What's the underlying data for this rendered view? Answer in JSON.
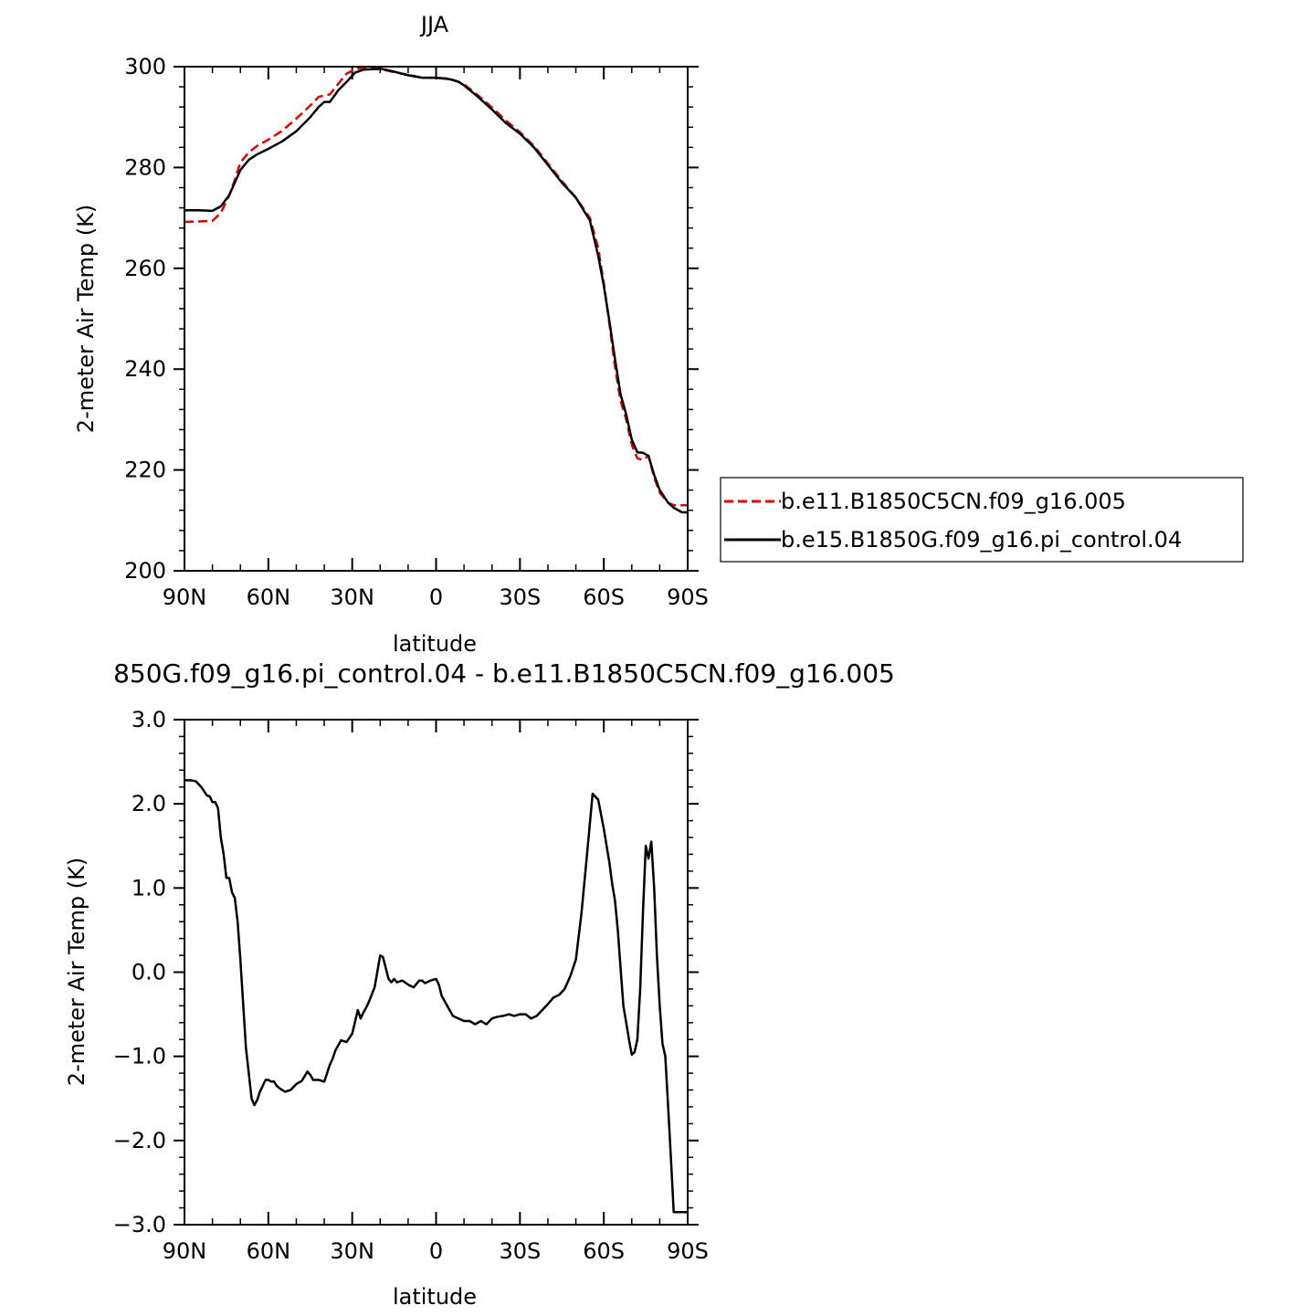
{
  "chart_data": [
    {
      "type": "line",
      "title": "JJA",
      "xlabel": "latitude",
      "ylabel": "2-meter Air Temp (K)",
      "x_axis": "latitude, from 90N (left) to 90S (right)",
      "xlim": [
        90,
        -90
      ],
      "ylim": [
        200,
        300
      ],
      "xticks": [
        90,
        60,
        30,
        0,
        -30,
        -60,
        -90
      ],
      "xtick_labels": [
        "90N",
        "60N",
        "30N",
        "0",
        "30S",
        "60S",
        "90S"
      ],
      "yticks": [
        200,
        220,
        240,
        260,
        280,
        300
      ],
      "ytick_labels": [
        "200",
        "220",
        "240",
        "260",
        "280",
        "300"
      ],
      "legend": {
        "position": "right"
      },
      "series": [
        {
          "name": "b.e11.B1850C5CN.f09_g16.005",
          "color": "#e00000",
          "dash": "dashed",
          "x": [
            90,
            85,
            80,
            77,
            74,
            72,
            70,
            67,
            64,
            60,
            55,
            50,
            45,
            42,
            40,
            38,
            35,
            32,
            29,
            26,
            23,
            20,
            18,
            15,
            10,
            5,
            0,
            -5,
            -8,
            -10,
            -15,
            -20,
            -25,
            -30,
            -35,
            -40,
            -45,
            -50,
            -55,
            -58,
            -60,
            -62,
            -64,
            -66,
            -68,
            -70,
            -72,
            -74,
            -76,
            -78,
            -80,
            -83,
            -85,
            -88,
            -90
          ],
          "y": [
            269.2,
            269.3,
            269.4,
            271.0,
            274.5,
            277.5,
            281.0,
            283.0,
            284.3,
            285.5,
            287.3,
            289.7,
            292.3,
            294.0,
            294.3,
            294.5,
            296.6,
            298.6,
            299.5,
            299.8,
            299.7,
            299.5,
            299.3,
            298.9,
            298.4,
            297.8,
            297.8,
            297.6,
            297.0,
            296.5,
            294.3,
            291.9,
            289.3,
            287.0,
            284.3,
            280.8,
            277.3,
            274.0,
            270.0,
            264.0,
            257.0,
            249.0,
            240.5,
            233.7,
            230.0,
            225.0,
            222.3,
            222.0,
            222.8,
            218.5,
            215.5,
            213.5,
            213.0,
            213.0,
            213.0
          ]
        },
        {
          "name": "b.e15.B1850G.f09_g16.pi_control.04",
          "color": "#000000",
          "dash": "solid",
          "x": [
            90,
            85,
            80,
            77,
            74,
            72,
            70,
            67,
            64,
            60,
            55,
            50,
            45,
            42,
            40,
            38,
            35,
            32,
            29,
            26,
            23,
            20,
            18,
            15,
            10,
            5,
            0,
            -5,
            -8,
            -10,
            -15,
            -20,
            -25,
            -30,
            -35,
            -40,
            -45,
            -50,
            -55,
            -58,
            -60,
            -62,
            -64,
            -66,
            -68,
            -70,
            -72,
            -74,
            -76,
            -78,
            -80,
            -83,
            -85,
            -88,
            -90
          ],
          "y": [
            271.5,
            271.5,
            271.4,
            272.3,
            274.5,
            277.0,
            279.5,
            281.5,
            282.6,
            283.7,
            285.2,
            287.2,
            290.0,
            292.0,
            293.0,
            293.0,
            295.3,
            297.0,
            298.8,
            299.4,
            299.5,
            299.6,
            299.4,
            299.0,
            298.3,
            297.8,
            297.8,
            297.5,
            297.0,
            296.3,
            294.0,
            291.5,
            288.8,
            286.7,
            284.0,
            280.5,
            277.0,
            274.0,
            269.5,
            262.5,
            256.5,
            249.5,
            242.0,
            235.0,
            231.0,
            226.0,
            223.5,
            223.4,
            222.8,
            219.0,
            216.0,
            213.5,
            212.5,
            211.6,
            211.6
          ]
        }
      ]
    },
    {
      "type": "line",
      "title": "850G.f09_g16.pi_control.04 - b.e11.B1850C5CN.f09_g16.005",
      "xlabel": "latitude",
      "ylabel": "2-meter Air Temp (K)",
      "x_axis": "latitude, from 90N (left) to 90S (right)",
      "xlim": [
        90,
        -90
      ],
      "ylim": [
        -3.0,
        3.0
      ],
      "xticks": [
        90,
        60,
        30,
        0,
        -30,
        -60,
        -90
      ],
      "xtick_labels": [
        "90N",
        "60N",
        "30N",
        "0",
        "30S",
        "60S",
        "90S"
      ],
      "yticks": [
        -3,
        -2,
        -1,
        0,
        1,
        2,
        3
      ],
      "ytick_labels": [
        "−3.0",
        "−2.0",
        "−1.0",
        "0.0",
        "1.0",
        "2.0",
        "3.0"
      ],
      "series": [
        {
          "color": "#000000",
          "dash": "solid",
          "x": [
            90,
            88,
            86,
            84,
            82,
            81,
            80,
            79,
            78,
            77,
            76,
            75,
            74,
            73,
            72,
            71,
            70,
            68,
            66,
            65,
            64,
            63,
            62,
            61,
            60,
            59,
            58,
            57,
            56,
            54,
            52,
            50,
            48,
            46,
            45,
            44,
            42,
            40,
            38,
            37,
            36,
            34,
            32,
            31,
            30,
            28,
            27,
            26,
            25,
            24,
            22,
            20,
            19,
            18,
            17,
            16,
            15,
            14,
            12,
            10,
            8,
            6,
            5,
            4,
            2,
            0,
            -1,
            -2,
            -4,
            -6,
            -8,
            -10,
            -12,
            -14,
            -16,
            -18,
            -20,
            -22,
            -24,
            -26,
            -28,
            -30,
            -32,
            -34,
            -36,
            -38,
            -40,
            -42,
            -44,
            -46,
            -48,
            -50,
            -52,
            -54,
            -56,
            -58,
            -60,
            -62,
            -63,
            -64,
            -65,
            -66,
            -67,
            -68,
            -69,
            -70,
            -71,
            -72,
            -73,
            -74,
            -75,
            -76,
            -77,
            -78,
            -79,
            -80,
            -81,
            -82,
            -83,
            -84,
            -85,
            -86,
            -87,
            -88,
            -89,
            -90
          ],
          "y": [
            2.28,
            2.28,
            2.27,
            2.2,
            2.1,
            2.09,
            2.02,
            2.02,
            1.95,
            1.6,
            1.4,
            1.12,
            1.12,
            0.95,
            0.88,
            0.6,
            0.15,
            -0.9,
            -1.5,
            -1.58,
            -1.52,
            -1.42,
            -1.35,
            -1.28,
            -1.28,
            -1.3,
            -1.3,
            -1.35,
            -1.38,
            -1.42,
            -1.4,
            -1.33,
            -1.29,
            -1.18,
            -1.22,
            -1.28,
            -1.28,
            -1.3,
            -1.1,
            -1.03,
            -0.93,
            -0.81,
            -0.83,
            -0.78,
            -0.73,
            -0.45,
            -0.55,
            -0.48,
            -0.42,
            -0.35,
            -0.18,
            0.2,
            0.18,
            0.05,
            -0.08,
            -0.12,
            -0.08,
            -0.12,
            -0.1,
            -0.15,
            -0.18,
            -0.1,
            -0.1,
            -0.13,
            -0.1,
            -0.08,
            -0.15,
            -0.28,
            -0.4,
            -0.52,
            -0.55,
            -0.58,
            -0.58,
            -0.62,
            -0.58,
            -0.62,
            -0.55,
            -0.53,
            -0.52,
            -0.5,
            -0.52,
            -0.5,
            -0.5,
            -0.55,
            -0.52,
            -0.45,
            -0.38,
            -0.3,
            -0.27,
            -0.2,
            -0.05,
            0.15,
            0.7,
            1.4,
            2.12,
            2.05,
            1.7,
            1.3,
            1.05,
            0.85,
            0.5,
            0.05,
            -0.4,
            -0.6,
            -0.8,
            -0.98,
            -0.95,
            -0.8,
            -0.2,
            0.7,
            1.5,
            1.35,
            1.55,
            1.0,
            0.2,
            -0.4,
            -0.85,
            -1.0,
            -1.6,
            -2.2,
            -2.85,
            -2.85,
            -2.85,
            -2.85,
            -2.85,
            -2.85
          ]
        }
      ]
    }
  ]
}
